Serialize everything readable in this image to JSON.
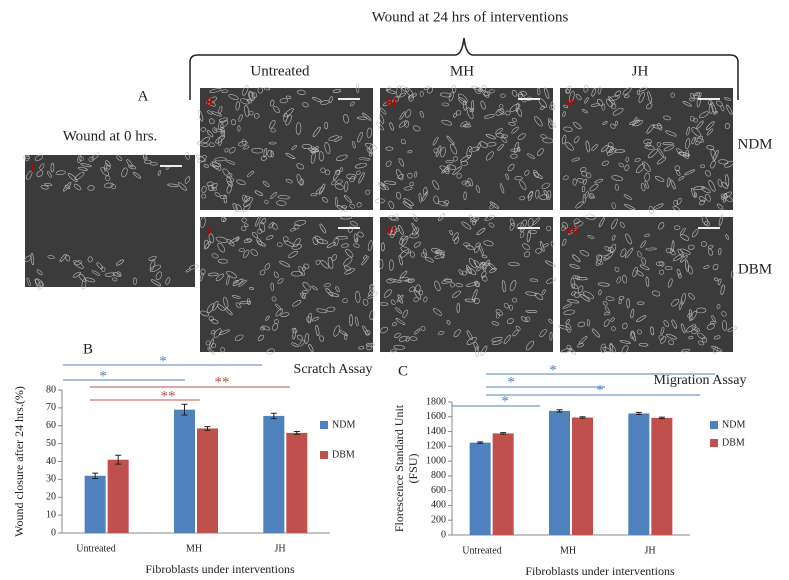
{
  "figure": {
    "title": "Wound at 24 hrs of interventions",
    "columns": [
      "Untreated",
      "MH",
      "JH"
    ],
    "rows": [
      "NDM",
      "DBM"
    ],
    "panel": "A",
    "baseline": "Wound at 0 hrs.",
    "image_labels": [
      "i",
      "ii",
      "iii",
      "iv",
      "v",
      "vi",
      "vii"
    ]
  },
  "chart_data": [
    {
      "type": "bar",
      "panel": "B",
      "title": "Scratch Assay",
      "x_label": "Fibroblasts under interventions",
      "y_label": "Wound closure after 24 hrs.(%)",
      "categories": [
        "Untreated",
        "MH",
        "JH"
      ],
      "series": [
        {
          "name": "NDM",
          "color": "#4f81bd",
          "values": [
            32,
            69,
            65.5
          ],
          "errors": [
            1.5,
            3,
            1.5
          ]
        },
        {
          "name": "DBM",
          "color": "#c0504d",
          "values": [
            41,
            58.5,
            56
          ],
          "errors": [
            2.5,
            1,
            0.8
          ]
        }
      ],
      "ylim": [
        0,
        80
      ],
      "yticks": [
        0,
        10,
        20,
        30,
        40,
        50,
        60,
        70,
        80
      ],
      "annotations": [
        "*",
        "*",
        "**",
        "**"
      ]
    },
    {
      "type": "bar",
      "panel": "C",
      "title": "Migration Assay",
      "x_label": "Fibroblasts under interventions",
      "y_label": [
        "Florescence Standard Unit",
        "(FSU)"
      ],
      "categories": [
        "Untreated",
        "MH",
        "JH"
      ],
      "series": [
        {
          "name": "NDM",
          "color": "#4f81bd",
          "values": [
            1250,
            1680,
            1645
          ],
          "errors": [
            10,
            15,
            15
          ]
        },
        {
          "name": "DBM",
          "color": "#c0504d",
          "values": [
            1375,
            1590,
            1585
          ],
          "errors": [
            10,
            10,
            10
          ]
        }
      ],
      "ylim": [
        0,
        1800
      ],
      "yticks": [
        0,
        200,
        400,
        600,
        800,
        1000,
        1200,
        1400,
        1600,
        1800
      ],
      "annotations": [
        "*",
        "*",
        "*",
        "*"
      ]
    }
  ]
}
